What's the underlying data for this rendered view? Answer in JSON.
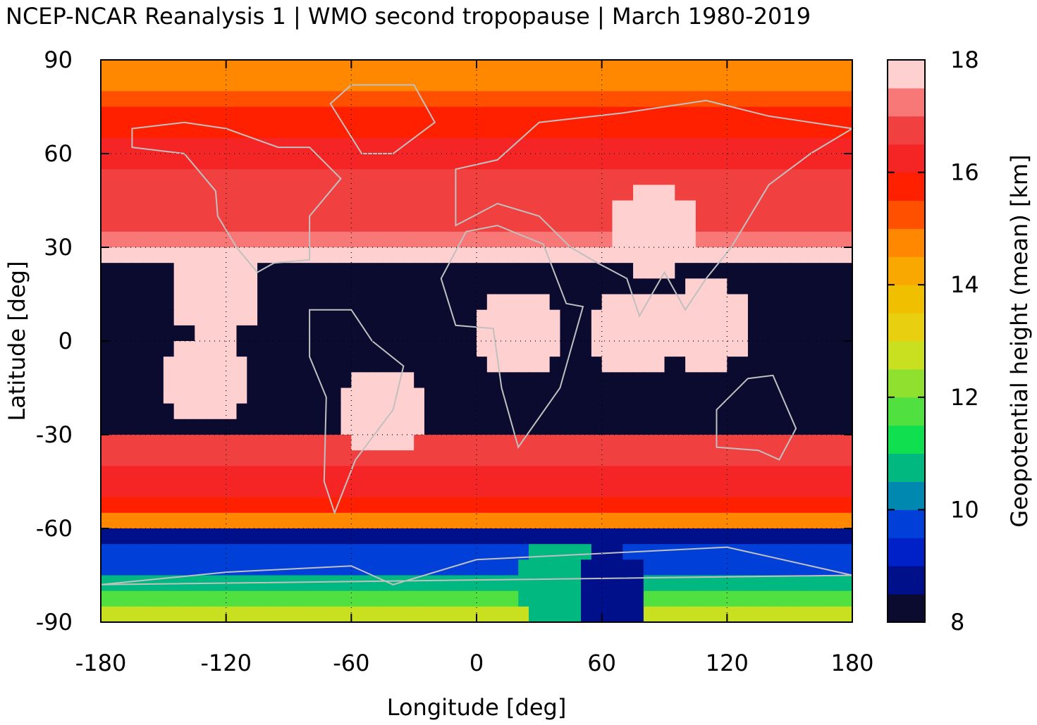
{
  "chart_data": {
    "type": "heatmap",
    "title": "NCEP-NCAR Reanalysis 1 | WMO second tropopause | March 1980-2019",
    "xlabel": "Longitude [deg]",
    "ylabel": "Latitude [deg]",
    "colorbar_label": "Geopotential height (mean) [km]",
    "xlim": [
      -180,
      180
    ],
    "ylim": [
      -90,
      90
    ],
    "clim": [
      8,
      18
    ],
    "x_ticks": [
      "-180",
      "-120",
      "-60",
      "0",
      "60",
      "120",
      "180"
    ],
    "y_ticks": [
      "90",
      "60",
      "30",
      "0",
      "-30",
      "-60",
      "-90"
    ],
    "colorbar_ticks": [
      "18",
      "16",
      "14",
      "12",
      "10",
      "8"
    ],
    "grid": true,
    "grid_lon": [
      -120,
      -60,
      0,
      60,
      120
    ],
    "grid_lat": [
      60,
      30,
      0,
      -30,
      -60
    ],
    "colormap": [
      "#0b0b30",
      "#000f8a",
      "#0020c8",
      "#0040d8",
      "#0088b0",
      "#00b880",
      "#10e050",
      "#50e040",
      "#90e030",
      "#c8e020",
      "#e8d010",
      "#f0c000",
      "#f8a800",
      "#ff8800",
      "#ff5000",
      "#ff2000",
      "#f52525",
      "#f04040",
      "#f87878",
      "#ffd0d0"
    ],
    "coastline_color": "#c0c0c0",
    "grid_resolution_deg": 5,
    "lat_rows": [
      87.5,
      82.5,
      77.5,
      72.5,
      67.5,
      62.5,
      57.5,
      52.5,
      47.5,
      42.5,
      37.5,
      32.5,
      27.5,
      22.5,
      17.5,
      12.5,
      7.5,
      2.5,
      -2.5,
      -7.5,
      -12.5,
      -17.5,
      -22.5,
      -27.5,
      -32.5,
      -37.5,
      -42.5,
      -47.5,
      -52.5,
      -57.5,
      -62.5,
      -67.5,
      -72.5,
      -77.5,
      -82.5,
      -87.5
    ],
    "zonal_mean_km": [
      14.5,
      14.8,
      15.3,
      15.6,
      15.9,
      16.2,
      16.4,
      16.5,
      16.6,
      16.7,
      16.9,
      17.2,
      17.6,
      8,
      8,
      8,
      8,
      8,
      8,
      8,
      8,
      8,
      8,
      8,
      16.9,
      16.6,
      16.4,
      16.1,
      15.5,
      14.8,
      8.5,
      9.5,
      9.8,
      10.5,
      11.5,
      12.5
    ],
    "highlights": [
      {
        "lon": -125,
        "lat": 15,
        "value": 17.9
      },
      {
        "lon": -130,
        "lat": -12,
        "value": 17.9
      },
      {
        "lon": -45,
        "lat": -22,
        "value": 17.9
      },
      {
        "lon": 20,
        "lat": 2,
        "value": 17.9
      },
      {
        "lon": 75,
        "lat": 2,
        "value": 17.9
      },
      {
        "lon": 110,
        "lat": 5,
        "value": 17.9
      },
      {
        "lon": 85,
        "lat": 35,
        "value": 17.9
      },
      {
        "lon": 60,
        "lat": -80,
        "value": 8.5
      },
      {
        "lon": 40,
        "lat": -78,
        "value": 10.5
      }
    ]
  }
}
